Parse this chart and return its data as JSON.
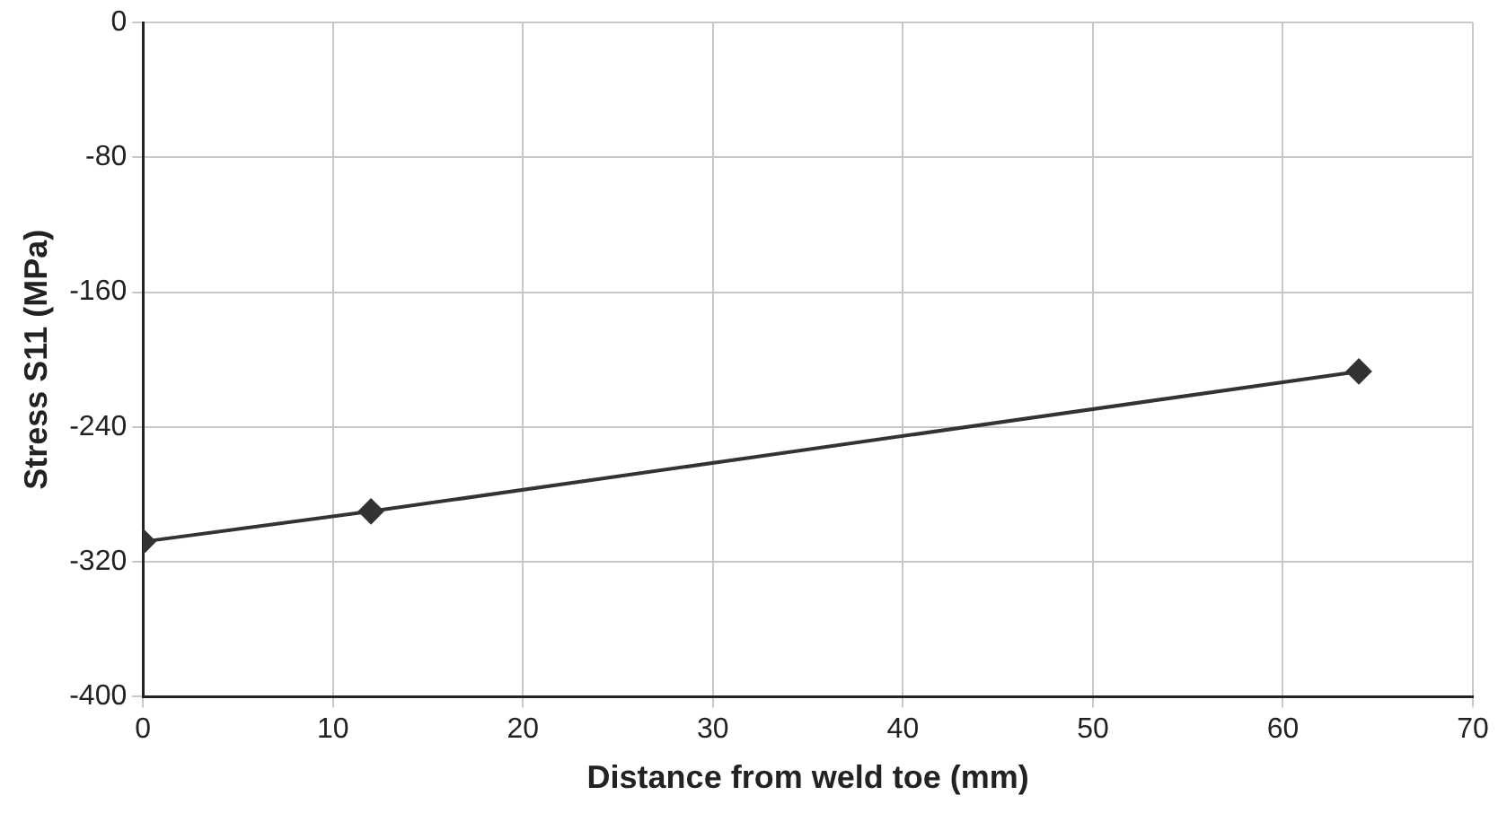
{
  "chart_data": {
    "type": "line",
    "xlabel": "Distance from weld toe (mm)",
    "ylabel": "Stress S11 (MPa)",
    "x": [
      0,
      12,
      64
    ],
    "series": [
      {
        "color": "#333333",
        "values": [
          -308,
          -290,
          -207
        ]
      }
    ],
    "xlim": [
      0,
      70
    ],
    "xticks": [
      0,
      10,
      20,
      30,
      40,
      50,
      60,
      70
    ],
    "ylim": [
      -400,
      0
    ],
    "yticks": [
      -400,
      -320,
      -240,
      -160,
      -80,
      0
    ],
    "grid": true,
    "legend": false,
    "marker": "diamond",
    "line_style": "solid"
  }
}
